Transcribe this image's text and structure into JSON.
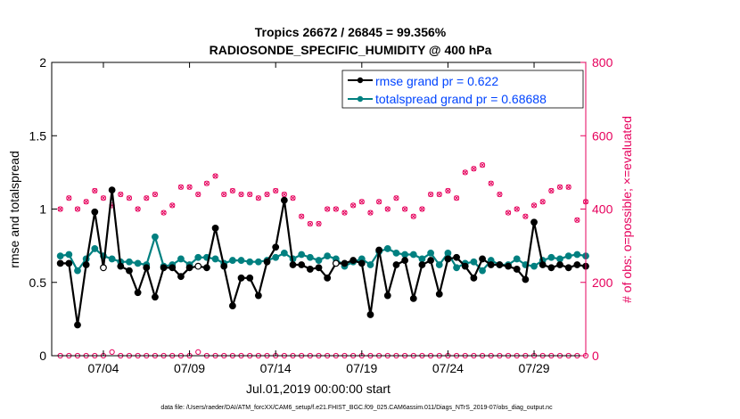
{
  "chart_data": {
    "type": "line",
    "title": [
      "Tropics 26672 / 26845 = 99.356%",
      "RADIOSONDE_SPECIFIC_HUMIDITY @ 400 hPa"
    ],
    "xlabel": "Jul.01,2019 00:00:00 start",
    "ylabel_left": "rmse and totalspread",
    "ylabel_right": "# of obs: o=possible; ×=evaluated",
    "footnote": "data file: /Users/raeder/DAI/ATM_forcXX/CAM6_setup/f.e21.FHIST_BGC.f09_025.CAM6assim.011/Diags_NTrS_2019-07/obs_diag_output.nc",
    "xlim": [
      1.0,
      32.0
    ],
    "ylim_left": [
      0,
      2
    ],
    "ylim_right": [
      0,
      800
    ],
    "x_tick_values": [
      4,
      9,
      14,
      19,
      24,
      29
    ],
    "x_tick_labels": [
      "07/04",
      "07/09",
      "07/14",
      "07/19",
      "07/24",
      "07/29"
    ],
    "y_left_ticks": [
      0,
      0.5,
      1,
      1.5,
      2
    ],
    "y_left_tick_labels": [
      "0",
      "0.5",
      "1",
      "1.5",
      "2"
    ],
    "y_right_ticks": [
      0,
      200,
      400,
      600,
      800
    ],
    "y_right_tick_labels": [
      "0",
      "200",
      "400",
      "600",
      "800"
    ],
    "colors": {
      "rmse": "#000000",
      "spread": "#008080",
      "obs": "#e6005c",
      "legend_text": "#0044ff"
    },
    "legend": [
      {
        "name": "rmse",
        "label": "rmse grand pr = 0.622"
      },
      {
        "name": "spread",
        "label": "totalspread grand pr = 0.68688"
      }
    ],
    "x": [
      1.0,
      1.5,
      2.0,
      2.5,
      3.0,
      3.5,
      4.0,
      4.5,
      5.0,
      5.5,
      6.0,
      6.5,
      7.0,
      7.5,
      8.0,
      8.5,
      9.0,
      9.5,
      10.0,
      10.5,
      11.0,
      11.5,
      12.0,
      12.5,
      13.0,
      13.5,
      14.0,
      14.5,
      15.0,
      15.5,
      16.0,
      16.5,
      17.0,
      17.5,
      18.0,
      18.5,
      19.0,
      19.5,
      20.0,
      20.5,
      21.0,
      21.5,
      22.0,
      22.5,
      23.0,
      23.5,
      24.0,
      24.5,
      25.0,
      25.5,
      26.0,
      26.5,
      27.0,
      27.5,
      28.0,
      28.5,
      29.0,
      29.5,
      30.0,
      30.5,
      31.0,
      31.5,
      32.0
    ],
    "series": [
      {
        "name": "rmse",
        "values": [
          null,
          0.63,
          0.63,
          0.21,
          0.62,
          0.98,
          0.6,
          1.13,
          0.61,
          0.58,
          0.43,
          0.6,
          0.4,
          0.6,
          0.6,
          0.54,
          0.6,
          0.61,
          0.6,
          0.87,
          0.61,
          0.34,
          0.53,
          0.53,
          0.41,
          0.64,
          0.74,
          1.06,
          0.62,
          0.62,
          0.59,
          0.6,
          0.53,
          0.63,
          0.63,
          0.65,
          0.63,
          0.28,
          0.72,
          0.41,
          0.62,
          0.65,
          0.39,
          0.62,
          0.65,
          0.42,
          0.66,
          0.67,
          0.61,
          0.53,
          0.66,
          0.62,
          0.62,
          0.61,
          0.59,
          0.52,
          0.91,
          0.62,
          0.6,
          0.62,
          0.6,
          0.62,
          0.61
        ]
      },
      {
        "name": "spread",
        "values": [
          null,
          0.68,
          0.69,
          0.58,
          0.66,
          0.73,
          0.68,
          0.66,
          0.64,
          0.64,
          0.63,
          0.62,
          0.81,
          0.61,
          0.62,
          0.66,
          0.62,
          0.67,
          0.67,
          0.66,
          0.63,
          0.65,
          0.65,
          0.64,
          0.64,
          0.65,
          0.67,
          0.7,
          0.66,
          0.69,
          0.67,
          0.65,
          0.68,
          0.66,
          0.61,
          0.64,
          0.66,
          0.62,
          0.71,
          0.73,
          0.7,
          0.69,
          0.69,
          0.66,
          0.7,
          0.62,
          0.7,
          0.6,
          0.63,
          0.64,
          0.58,
          0.65,
          0.62,
          0.62,
          0.66,
          0.62,
          0.61,
          0.65,
          0.67,
          0.66,
          0.68,
          0.69,
          0.68
        ]
      },
      {
        "name": "obs_possible",
        "values": [
          null,
          400,
          430,
          400,
          420,
          450,
          430,
          410,
          440,
          430,
          400,
          430,
          440,
          390,
          410,
          460,
          460,
          440,
          470,
          490,
          440,
          450,
          440,
          440,
          430,
          440,
          450,
          440,
          430,
          380,
          360,
          360,
          400,
          400,
          390,
          410,
          420,
          390,
          420,
          400,
          430,
          400,
          380,
          400,
          440,
          440,
          450,
          430,
          500,
          510,
          520,
          470,
          440,
          390,
          400,
          380,
          410,
          420,
          450,
          460,
          460,
          370,
          420
        ]
      },
      {
        "name": "obs_evaluated",
        "values": [
          null,
          400,
          430,
          400,
          420,
          450,
          430,
          410,
          440,
          430,
          400,
          430,
          440,
          390,
          410,
          460,
          460,
          440,
          470,
          490,
          440,
          450,
          440,
          440,
          430,
          440,
          450,
          440,
          430,
          380,
          360,
          360,
          400,
          400,
          390,
          410,
          420,
          390,
          420,
          400,
          430,
          400,
          380,
          400,
          440,
          440,
          450,
          430,
          500,
          510,
          520,
          470,
          440,
          390,
          400,
          380,
          410,
          420,
          450,
          460,
          460,
          370,
          420
        ]
      },
      {
        "name": "obs_low_possible",
        "values": [
          null,
          0,
          0,
          0,
          0,
          0,
          0,
          10,
          0,
          0,
          0,
          0,
          0,
          0,
          0,
          0,
          0,
          10,
          0,
          0,
          0,
          0,
          0,
          0,
          0,
          0,
          0,
          0,
          0,
          0,
          0,
          0,
          0,
          0,
          0,
          0,
          0,
          0,
          0,
          0,
          0,
          0,
          0,
          0,
          0,
          0,
          0,
          0,
          0,
          0,
          0,
          0,
          0,
          0,
          0,
          0,
          0,
          0,
          0,
          0,
          0,
          0,
          0
        ]
      }
    ],
    "hollow_indices": [
      6,
      17,
      33
    ]
  }
}
